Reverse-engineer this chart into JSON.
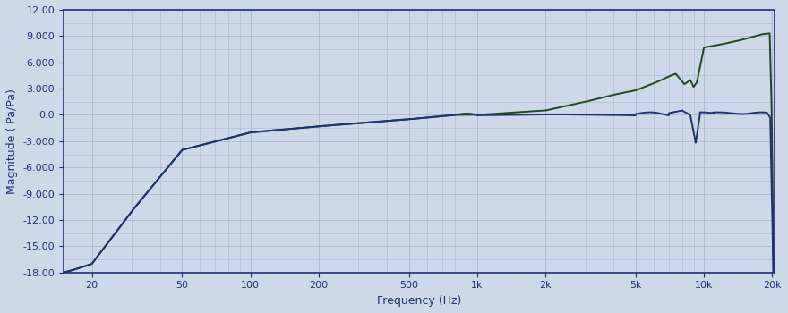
{
  "xlabel": "Frequency (Hz)",
  "ylabel": "Magnitude ( Pa/Pa)",
  "xlim": [
    15,
    20500
  ],
  "ylim": [
    -18,
    12
  ],
  "yticks": [
    -18,
    -15,
    -12,
    -9,
    -6,
    -3,
    0,
    3,
    6,
    9,
    12
  ],
  "ytick_labels": [
    "-18.00",
    "-15.00",
    "-12.00",
    "-9.000",
    "-6.000",
    "-3.000",
    "0.0",
    "3.000",
    "6.000",
    "9.000",
    "12.00"
  ],
  "xtick_positions": [
    20,
    50,
    100,
    200,
    500,
    1000,
    2000,
    5000,
    10000,
    20000
  ],
  "xtick_labels": [
    "20",
    "50",
    "100",
    "200",
    "500",
    "1k",
    "2k",
    "5k",
    "10k",
    "20k"
  ],
  "blue_color": "#1e3170",
  "green_color": "#1e4a1e",
  "bg_color": "#cdd9e8",
  "grid_color": "#aab8cc",
  "label_color": "#1e3170",
  "line_width": 1.4
}
